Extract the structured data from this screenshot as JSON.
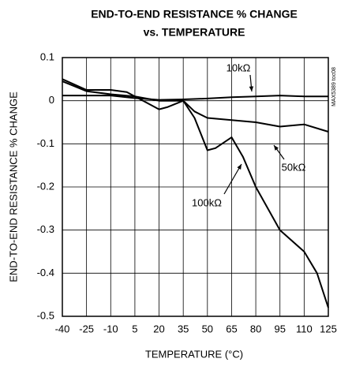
{
  "chart_data": {
    "type": "line",
    "title": [
      "END-TO-END RESISTANCE % CHANGE",
      "vs. TEMPERATURE"
    ],
    "figure_id": "MAX5389 toc08",
    "x_label": "TEMPERATURE (°C)",
    "y_label": "END-TO-END RESISTANCE % CHANGE",
    "xlim": [
      -40,
      125
    ],
    "xticks": [
      -40,
      -25,
      -10,
      5,
      20,
      35,
      50,
      65,
      80,
      95,
      110,
      125
    ],
    "ylim": [
      -0.5,
      0.1
    ],
    "yticks": [
      0.1,
      0,
      -0.1,
      -0.2,
      -0.3,
      -0.4,
      -0.5
    ],
    "grid": true,
    "series": [
      {
        "name": "10kΩ",
        "color": "#000000",
        "x": [
          -40,
          -25,
          -10,
          5,
          20,
          35,
          50,
          65,
          80,
          95,
          110,
          125
        ],
        "values": [
          0.012,
          0.012,
          0.012,
          0.006,
          0.002,
          0.003,
          0.005,
          0.008,
          0.01,
          0.012,
          0.01,
          0.01
        ]
      },
      {
        "name": "50kΩ",
        "color": "#000000",
        "x": [
          -40,
          -25,
          -10,
          5,
          20,
          35,
          42,
          50,
          65,
          80,
          95,
          110,
          125
        ],
        "values": [
          0.045,
          0.022,
          0.015,
          0.01,
          0.0,
          0.0,
          -0.025,
          -0.04,
          -0.045,
          -0.05,
          -0.06,
          -0.055,
          -0.072
        ]
      },
      {
        "name": "100kΩ",
        "color": "#000000",
        "x": [
          -40,
          -25,
          -10,
          0,
          5,
          15,
          20,
          25,
          35,
          42,
          50,
          55,
          65,
          72,
          80,
          95,
          110,
          118,
          125
        ],
        "values": [
          0.05,
          0.025,
          0.025,
          0.02,
          0.01,
          -0.01,
          -0.02,
          -0.015,
          0.0,
          -0.04,
          -0.115,
          -0.11,
          -0.085,
          -0.13,
          -0.2,
          -0.3,
          -0.35,
          -0.4,
          -0.48
        ]
      }
    ]
  }
}
